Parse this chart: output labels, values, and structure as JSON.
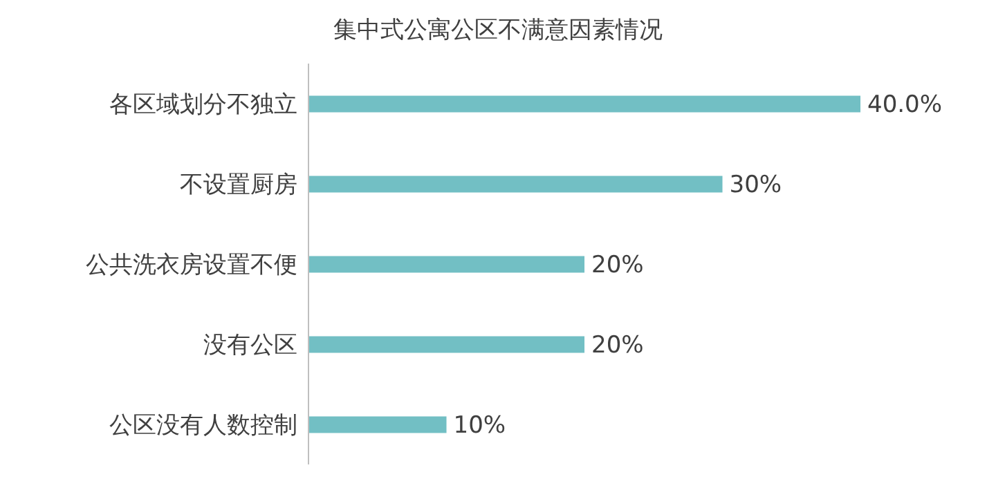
{
  "chart_data": {
    "type": "bar",
    "orientation": "horizontal",
    "title": "集中式公寓公区不满意因素情况",
    "categories": [
      "各区域划分不独立",
      "不设置厨房",
      "公共洗衣房设置不便",
      "没有公区",
      "公区没有人数控制"
    ],
    "values": [
      40.0,
      30,
      20,
      20,
      10
    ],
    "value_labels": [
      "40.0%",
      "30%",
      "20%",
      "20%",
      "10%"
    ],
    "color": "#72bfc4"
  }
}
